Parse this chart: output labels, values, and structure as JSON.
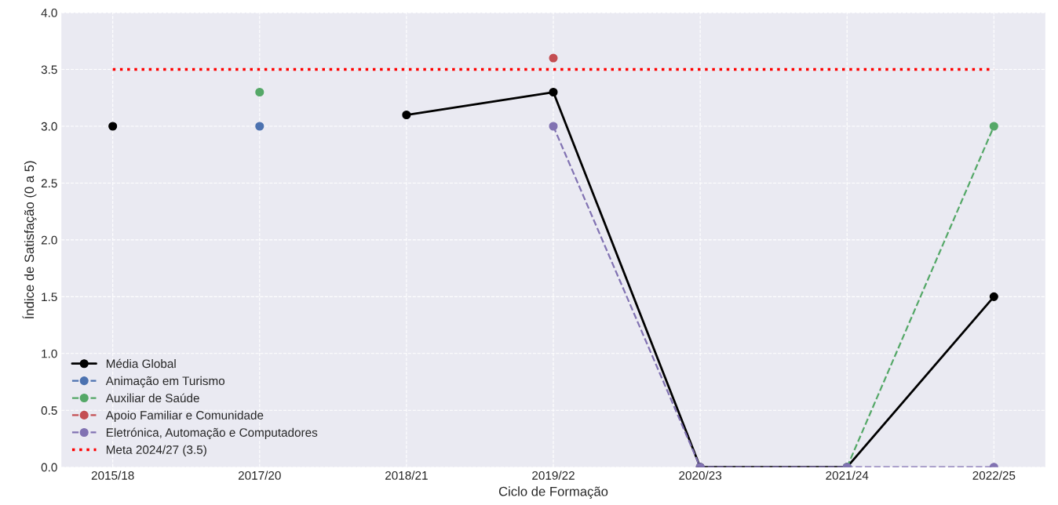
{
  "chart_data": {
    "type": "line",
    "xlabel": "Ciclo de Formação",
    "ylabel": "Índice de Satisfação (0 a 5)",
    "categories": [
      "2015/18",
      "2017/20",
      "2018/21",
      "2019/22",
      "2020/23",
      "2021/24",
      "2022/25"
    ],
    "series": [
      {
        "name": "Média Global",
        "color": "#000000",
        "line_style": "solid",
        "values": [
          3.0,
          null,
          3.1,
          3.3,
          0,
          0,
          1.5
        ]
      },
      {
        "name": "Animação em Turismo",
        "color": "#4c72b0",
        "line_style": "dashed",
        "values": [
          null,
          3.0,
          null,
          null,
          null,
          null,
          null
        ]
      },
      {
        "name": "Auxiliar de Saúde",
        "color": "#55a868",
        "line_style": "dashed",
        "values": [
          null,
          3.3,
          null,
          null,
          null,
          0,
          3.0
        ]
      },
      {
        "name": "Apoio Familiar e Comunidade",
        "color": "#c44e52",
        "line_style": "dashed",
        "values": [
          null,
          null,
          null,
          3.6,
          null,
          null,
          null
        ]
      },
      {
        "name": "Eletrónica, Automação e Computadores",
        "color": "#8172b2",
        "line_style": "dashed",
        "values": [
          null,
          null,
          null,
          3.0,
          0,
          0,
          0
        ]
      }
    ],
    "ref_lines": [
      {
        "axis": "y",
        "value": 3.5,
        "label": "Meta 2024/27 (3.5)",
        "color": "#ff0000",
        "line_style": "dotted"
      }
    ],
    "ylim": [
      0,
      4.0
    ],
    "yticks": [
      {
        "value": 0,
        "label": "0.0"
      },
      0.5,
      {
        "value": 1,
        "label": "1.0"
      },
      1.5,
      {
        "value": 2,
        "label": "2.0"
      },
      2.5,
      {
        "value": 3,
        "label": "3.0"
      },
      3.5,
      {
        "value": 4,
        "label": "4.0"
      }
    ],
    "grid": true,
    "legend": "bottom left",
    "marker": "circle"
  }
}
